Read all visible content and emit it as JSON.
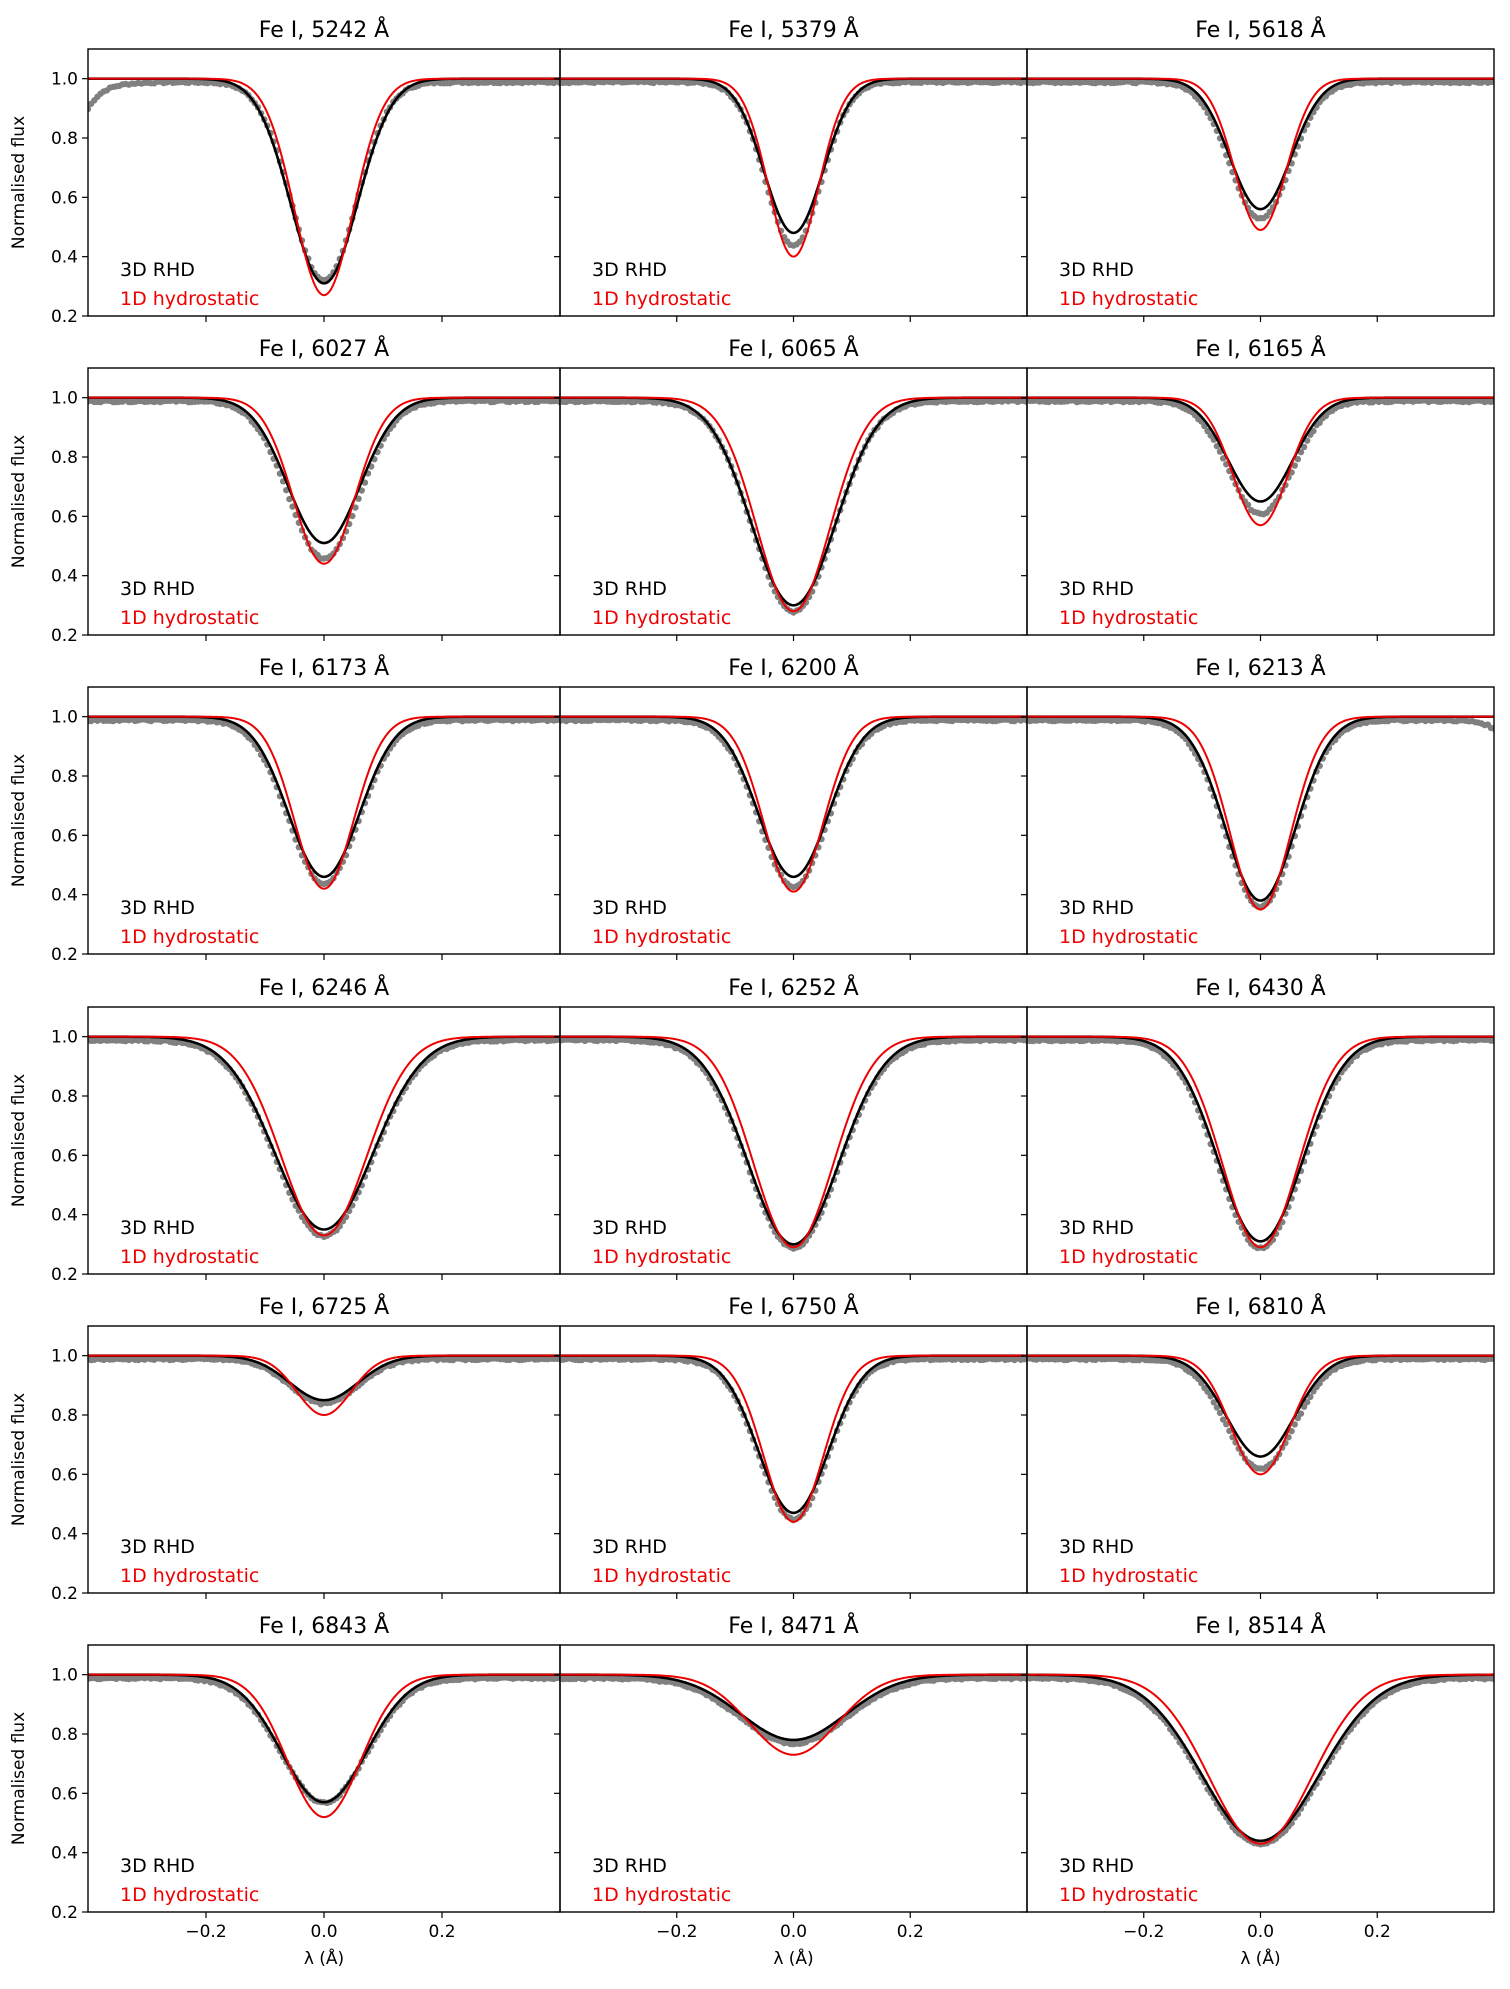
{
  "chart_data": {
    "type": "line",
    "layout": {
      "rows": 6,
      "cols": 3,
      "shared_x": true,
      "shared_y": true
    },
    "ylabel": "Normalised flux",
    "xlabel": "λ (Å)",
    "xlim": [
      -0.4,
      0.4
    ],
    "ylim": [
      0.2,
      1.1
    ],
    "x_ticks": [
      -0.2,
      0.0,
      0.2
    ],
    "x_tick_labels": [
      "−0.2",
      "0.0",
      "0.2"
    ],
    "y_ticks": [
      0.2,
      0.4,
      0.6,
      0.8,
      1.0
    ],
    "y_tick_labels": [
      "0.2",
      "0.4",
      "0.6",
      "0.8",
      "1.0"
    ],
    "legend": {
      "placement": "lower-left",
      "entries": [
        {
          "label": "3D RHD",
          "color": "#000000"
        },
        {
          "label": "1D hydrostatic",
          "color": "#ee0000"
        }
      ]
    },
    "series_styles": {
      "observed": {
        "color": "#808080",
        "marker": "dot"
      },
      "3d_rhd": {
        "color": "#000000"
      },
      "1d_hydrostatic": {
        "color": "#ee0000"
      }
    },
    "panels": [
      {
        "title": "Fe I, 5242 Å",
        "depth_3d": 0.31,
        "depth_1d": 0.27,
        "depth_obs": 0.33,
        "width_3d": 0.057,
        "width_1d": 0.05,
        "width_obs": 0.055,
        "wing_obs": "left-dip"
      },
      {
        "title": "Fe I, 5379 Å",
        "depth_3d": 0.48,
        "depth_1d": 0.4,
        "depth_obs": 0.45,
        "width_3d": 0.05,
        "width_1d": 0.043,
        "width_obs": 0.048
      },
      {
        "title": "Fe I, 5618 Å",
        "depth_3d": 0.56,
        "depth_1d": 0.49,
        "depth_obs": 0.54,
        "width_3d": 0.052,
        "width_1d": 0.044,
        "width_obs": 0.052
      },
      {
        "title": "Fe I, 6027 Å",
        "depth_3d": 0.51,
        "depth_1d": 0.44,
        "depth_obs": 0.47,
        "width_3d": 0.061,
        "width_1d": 0.052,
        "width_obs": 0.06
      },
      {
        "title": "Fe I, 6065 Å",
        "depth_3d": 0.3,
        "depth_1d": 0.28,
        "depth_obs": 0.29,
        "width_3d": 0.072,
        "width_1d": 0.063,
        "width_obs": 0.07
      },
      {
        "title": "Fe I, 6165 Å",
        "depth_3d": 0.65,
        "depth_1d": 0.57,
        "depth_obs": 0.62,
        "width_3d": 0.055,
        "width_1d": 0.047,
        "width_obs": 0.055
      },
      {
        "title": "Fe I, 6173 Å",
        "depth_3d": 0.46,
        "depth_1d": 0.42,
        "depth_obs": 0.45,
        "width_3d": 0.06,
        "width_1d": 0.05,
        "width_obs": 0.06
      },
      {
        "title": "Fe I, 6200 Å",
        "depth_3d": 0.46,
        "depth_1d": 0.41,
        "depth_obs": 0.44,
        "width_3d": 0.06,
        "width_1d": 0.051,
        "width_obs": 0.059
      },
      {
        "title": "Fe I, 6213 Å",
        "depth_3d": 0.38,
        "depth_1d": 0.35,
        "depth_obs": 0.37,
        "width_3d": 0.06,
        "width_1d": 0.052,
        "width_obs": 0.06,
        "wing_obs": "right-dip"
      },
      {
        "title": "Fe I, 6246 Å",
        "depth_3d": 0.35,
        "depth_1d": 0.33,
        "depth_obs": 0.34,
        "width_3d": 0.083,
        "width_1d": 0.072,
        "width_obs": 0.082
      },
      {
        "title": "Fe I, 6252 Å",
        "depth_3d": 0.3,
        "depth_1d": 0.29,
        "depth_obs": 0.3,
        "width_3d": 0.078,
        "width_1d": 0.068,
        "width_obs": 0.078
      },
      {
        "title": "Fe I, 6430 Å",
        "depth_3d": 0.31,
        "depth_1d": 0.29,
        "depth_obs": 0.3,
        "width_3d": 0.072,
        "width_1d": 0.065,
        "width_obs": 0.072
      },
      {
        "title": "Fe I, 6725 Å",
        "depth_3d": 0.85,
        "depth_1d": 0.8,
        "depth_obs": 0.85,
        "width_3d": 0.058,
        "width_1d": 0.046,
        "width_obs": 0.056
      },
      {
        "title": "Fe I, 6750 Å",
        "depth_3d": 0.47,
        "depth_1d": 0.44,
        "depth_obs": 0.46,
        "width_3d": 0.06,
        "width_1d": 0.051,
        "width_obs": 0.059
      },
      {
        "title": "Fe I, 6810 Å",
        "depth_3d": 0.66,
        "depth_1d": 0.6,
        "depth_obs": 0.63,
        "width_3d": 0.058,
        "width_1d": 0.05,
        "width_obs": 0.058
      },
      {
        "title": "Fe I, 6843 Å",
        "depth_3d": 0.57,
        "depth_1d": 0.52,
        "depth_obs": 0.58,
        "width_3d": 0.072,
        "width_1d": 0.062,
        "width_obs": 0.072
      },
      {
        "title": "Fe I, 8471 Å",
        "depth_3d": 0.78,
        "depth_1d": 0.73,
        "depth_obs": 0.78,
        "width_3d": 0.09,
        "width_1d": 0.075,
        "width_obs": 0.09
      },
      {
        "title": "Fe I, 8514 Å",
        "depth_3d": 0.44,
        "depth_1d": 0.43,
        "depth_obs": 0.44,
        "width_3d": 0.1,
        "width_1d": 0.088,
        "width_obs": 0.1
      }
    ]
  }
}
